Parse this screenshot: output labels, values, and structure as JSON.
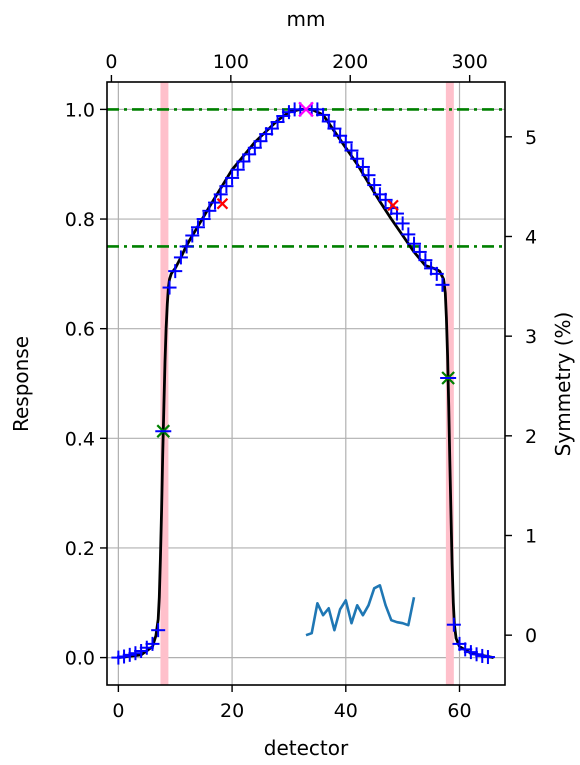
{
  "chart_data": {
    "type": "line",
    "xlabel": "detector",
    "ylabel": "Response",
    "x2label": "mm",
    "y2label": "Symmetry (%)",
    "xlim": [
      -2,
      68
    ],
    "ylim": [
      -0.05,
      1.05
    ],
    "x2lim": [
      -3.7,
      329.6
    ],
    "y2lim": [
      -0.5,
      5.55
    ],
    "xticks": [
      0,
      20,
      40,
      60
    ],
    "yticks": [
      0.0,
      0.2,
      0.4,
      0.6,
      0.8,
      1.0
    ],
    "x2ticks": [
      0,
      100,
      200,
      300
    ],
    "y2ticks": [
      0,
      1,
      2,
      3,
      4,
      5
    ],
    "xtick_labels": [
      "0",
      "20",
      "40",
      "60"
    ],
    "ytick_labels": [
      "0.0",
      "0.2",
      "0.4",
      "0.6",
      "0.8",
      "1.0"
    ],
    "x2tick_labels": [
      "0",
      "100",
      "200",
      "300"
    ],
    "y2tick_labels": [
      "0",
      "1",
      "2",
      "3",
      "4",
      "5"
    ],
    "grid": true,
    "colors": {
      "profile": "#000000",
      "measured": "#0000ff",
      "symmetry": "#1f77b4",
      "threshold": "#008000",
      "edge_band": "#ffc0cb",
      "half_max": "#008000",
      "marker_80": "#ff0000",
      "peak": "#ff00ff"
    },
    "edge_bands": [
      [
        7.4,
        8.8
      ],
      [
        57.6,
        59.0
      ]
    ],
    "threshold_lines": [
      0.75,
      1.0
    ],
    "profile_curve": {
      "x": [
        0,
        4,
        6,
        6.6,
        7.0,
        7.2,
        7.4,
        7.6,
        7.8,
        8.0,
        8.2,
        8.4,
        8.6,
        8.8,
        9.0,
        9.3,
        9.6,
        10.0,
        11.0,
        12,
        14,
        16,
        18,
        20,
        22,
        24,
        26,
        28,
        30,
        32,
        33,
        34,
        36,
        38,
        40,
        42,
        44,
        46,
        48,
        50,
        52,
        54,
        55.5,
        56.5,
        57.2,
        57.5,
        57.7,
        57.9,
        58.1,
        58.3,
        58.5,
        58.7,
        58.9,
        59.1,
        59.4,
        60,
        62,
        66
      ],
      "y": [
        0.0,
        0.005,
        0.02,
        0.04,
        0.07,
        0.11,
        0.18,
        0.27,
        0.37,
        0.46,
        0.54,
        0.6,
        0.645,
        0.675,
        0.69,
        0.7,
        0.705,
        0.71,
        0.73,
        0.752,
        0.787,
        0.822,
        0.856,
        0.89,
        0.915,
        0.94,
        0.96,
        0.98,
        0.995,
        1.0,
        1.0,
        1.0,
        0.99,
        0.96,
        0.93,
        0.9,
        0.866,
        0.832,
        0.8,
        0.77,
        0.74,
        0.715,
        0.71,
        0.705,
        0.69,
        0.665,
        0.62,
        0.55,
        0.46,
        0.36,
        0.26,
        0.17,
        0.1,
        0.06,
        0.035,
        0.02,
        0.008,
        0.0
      ]
    },
    "measured_points": {
      "x": [
        0,
        1,
        2,
        3,
        4,
        5,
        6,
        7,
        9,
        10,
        11,
        12,
        13,
        14,
        15,
        16,
        17,
        18,
        19,
        20,
        21,
        22,
        23,
        24,
        25,
        26,
        27,
        28,
        29,
        30,
        31,
        32,
        34,
        35,
        36,
        37,
        38,
        39,
        40,
        41,
        42,
        43,
        44,
        45,
        46,
        47,
        48,
        49,
        50,
        51,
        52,
        53,
        54,
        55,
        56,
        57,
        59,
        60,
        61,
        62,
        63,
        64,
        65
      ],
      "y": [
        0.0,
        0.002,
        0.005,
        0.008,
        0.012,
        0.018,
        0.025,
        0.05,
        0.675,
        0.705,
        0.73,
        0.75,
        0.77,
        0.785,
        0.8,
        0.815,
        0.83,
        0.845,
        0.86,
        0.875,
        0.89,
        0.905,
        0.918,
        0.93,
        0.942,
        0.955,
        0.965,
        0.977,
        0.988,
        0.995,
        1.0,
        1.0,
        1.0,
        1.0,
        0.99,
        0.978,
        0.965,
        0.952,
        0.94,
        0.925,
        0.91,
        0.895,
        0.88,
        0.862,
        0.845,
        0.835,
        0.82,
        0.81,
        0.792,
        0.772,
        0.755,
        0.74,
        0.725,
        0.71,
        0.7,
        0.68,
        0.06,
        0.025,
        0.015,
        0.01,
        0.006,
        0.003,
        0.001
      ]
    },
    "half_max_points": [
      {
        "x": 7.9,
        "y": 0.413
      },
      {
        "x": 58.0,
        "y": 0.51
      }
    ],
    "marker_80_points": [
      {
        "x": 18.3,
        "y": 0.828
      },
      {
        "x": 48.3,
        "y": 0.825
      }
    ],
    "peak_point": {
      "x": 33.0,
      "y": 1.0
    },
    "symmetry_series": {
      "x": [
        33,
        34,
        35,
        36,
        37,
        38,
        39,
        40,
        41,
        42,
        43,
        44,
        45,
        46,
        47,
        48,
        49,
        50,
        51,
        52
      ],
      "y": [
        0.0,
        0.02,
        0.32,
        0.2,
        0.27,
        0.05,
        0.26,
        0.35,
        0.12,
        0.3,
        0.2,
        0.3,
        0.47,
        0.5,
        0.3,
        0.15,
        0.13,
        0.12,
        0.1,
        0.38
      ]
    }
  }
}
